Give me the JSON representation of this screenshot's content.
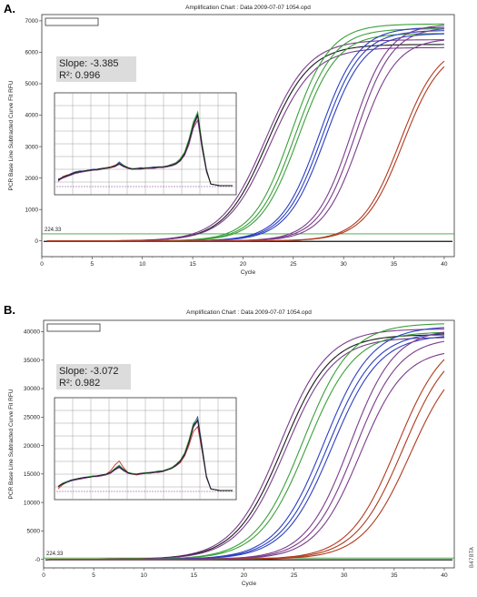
{
  "panels": [
    {
      "letter": "A.",
      "title": "Amplification Chart : Data 2009-07-07 1054.opd",
      "annotation": {
        "slope": "Slope: -3.385",
        "r2": "R²: 0.996"
      },
      "threshold_label": "224.33",
      "chart_data": {
        "type": "line",
        "title": "Amplification Chart : Data 2009-07-07 1054.opd",
        "xlabel": "Cycle",
        "ylabel": "PCR Base Line Subtracted Curve Fit RFU",
        "xlim": [
          0,
          41
        ],
        "ylim": [
          -500,
          7200
        ],
        "xticks": [
          0,
          5,
          10,
          15,
          20,
          25,
          30,
          35,
          40
        ],
        "yticks": [
          0,
          1000,
          2000,
          3000,
          4000,
          5000,
          6000,
          7000
        ],
        "threshold": 224.33,
        "threshold_color": "#3aa03a",
        "grid": false,
        "legend": "none",
        "series": [
          {
            "color": "#7a3c8c",
            "midpoint": 22.2,
            "plateau": 6400,
            "slope_k": 0.46
          },
          {
            "color": "#1a1a1a",
            "midpoint": 22.4,
            "plateau": 6250,
            "slope_k": 0.47
          },
          {
            "color": "#7a3c8c",
            "midpoint": 22.7,
            "plateau": 6150,
            "slope_k": 0.46
          },
          {
            "color": "#3aa03a",
            "midpoint": 24.8,
            "plateau": 6900,
            "slope_k": 0.52
          },
          {
            "color": "#3aa03a",
            "midpoint": 25.2,
            "plateau": 6750,
            "slope_k": 0.52
          },
          {
            "color": "#3aa03a",
            "midpoint": 25.5,
            "plateau": 6600,
            "slope_k": 0.52
          },
          {
            "color": "#2b3fc2",
            "midpoint": 27.6,
            "plateau": 6800,
            "slope_k": 0.52
          },
          {
            "color": "#2b3fc2",
            "midpoint": 27.9,
            "plateau": 6700,
            "slope_k": 0.52
          },
          {
            "color": "#2b3fc2",
            "midpoint": 28.2,
            "plateau": 6600,
            "slope_k": 0.52
          },
          {
            "color": "#7a3c8c",
            "midpoint": 30.8,
            "plateau": 6900,
            "slope_k": 0.55
          },
          {
            "color": "#7a3c8c",
            "midpoint": 31.2,
            "plateau": 6800,
            "slope_k": 0.55
          },
          {
            "color": "#7a3c8c",
            "midpoint": 31.6,
            "plateau": 6450,
            "slope_k": 0.55
          },
          {
            "color": "#b03a1e",
            "midpoint": 35.6,
            "plateau": 6300,
            "slope_k": 0.52
          },
          {
            "color": "#b03a1e",
            "midpoint": 35.9,
            "plateau": 6200,
            "slope_k": 0.52
          }
        ]
      },
      "inset_data": {
        "type": "line",
        "x": [
          0,
          1,
          2,
          3,
          4,
          5,
          6,
          7,
          8,
          9,
          10,
          11,
          12,
          13,
          14,
          15,
          16,
          17,
          18,
          19,
          20,
          21,
          22,
          23,
          24,
          25,
          26,
          27,
          28,
          29,
          30,
          31,
          32,
          33,
          34,
          35,
          36,
          37,
          38,
          39,
          40
        ],
        "series": [
          {
            "color": "#2b3fc2",
            "values": [
              0.08,
              0.1,
              0.12,
              0.15,
              0.17,
              0.18,
              0.18,
              0.19,
              0.2,
              0.2,
              0.21,
              0.22,
              0.23,
              0.24,
              0.29,
              0.25,
              0.22,
              0.2,
              0.21,
              0.22,
              0.21,
              0.22,
              0.23,
              0.22,
              0.23,
              0.24,
              0.26,
              0.28,
              0.32,
              0.4,
              0.55,
              0.75,
              0.88,
              0.5,
              0.2,
              0.02,
              0.01,
              0.0,
              0.0,
              0.0,
              0.0
            ]
          },
          {
            "color": "#c0392b",
            "values": [
              0.05,
              0.11,
              0.13,
              0.14,
              0.16,
              0.17,
              0.18,
              0.18,
              0.19,
              0.2,
              0.21,
              0.22,
              0.23,
              0.25,
              0.27,
              0.24,
              0.21,
              0.2,
              0.2,
              0.21,
              0.22,
              0.21,
              0.22,
              0.23,
              0.22,
              0.23,
              0.25,
              0.27,
              0.31,
              0.38,
              0.52,
              0.72,
              0.85,
              0.48,
              0.18,
              0.02,
              0.01,
              0.0,
              0.0,
              0.0,
              0.0
            ]
          },
          {
            "color": "#3aa03a",
            "values": [
              0.07,
              0.1,
              0.12,
              0.14,
              0.16,
              0.17,
              0.18,
              0.19,
              0.19,
              0.2,
              0.21,
              0.22,
              0.22,
              0.24,
              0.28,
              0.25,
              0.22,
              0.21,
              0.21,
              0.21,
              0.22,
              0.22,
              0.22,
              0.23,
              0.23,
              0.24,
              0.26,
              0.28,
              0.33,
              0.41,
              0.57,
              0.78,
              0.9,
              0.52,
              0.2,
              0.02,
              0.01,
              0.0,
              0.0,
              0.0,
              0.0
            ]
          },
          {
            "color": "#7a3c8c",
            "values": [
              0.06,
              0.09,
              0.11,
              0.13,
              0.15,
              0.16,
              0.17,
              0.18,
              0.19,
              0.19,
              0.2,
              0.21,
              0.22,
              0.23,
              0.26,
              0.23,
              0.21,
              0.2,
              0.2,
              0.2,
              0.21,
              0.21,
              0.21,
              0.22,
              0.22,
              0.23,
              0.24,
              0.26,
              0.3,
              0.37,
              0.5,
              0.7,
              0.8,
              0.45,
              0.17,
              0.02,
              0.01,
              0.0,
              0.0,
              0.0,
              0.0
            ]
          },
          {
            "color": "#1a1a1a",
            "values": [
              0.07,
              0.1,
              0.12,
              0.14,
              0.16,
              0.17,
              0.18,
              0.19,
              0.19,
              0.2,
              0.21,
              0.21,
              0.22,
              0.24,
              0.27,
              0.24,
              0.22,
              0.2,
              0.21,
              0.21,
              0.21,
              0.22,
              0.22,
              0.23,
              0.23,
              0.24,
              0.25,
              0.27,
              0.31,
              0.39,
              0.54,
              0.74,
              0.86,
              0.49,
              0.19,
              0.02,
              0.01,
              0.0,
              0.0,
              0.0,
              0.0
            ]
          }
        ]
      }
    },
    {
      "letter": "B.",
      "title": "Amplification Chart : Data 2009-07-07 1054.opd",
      "annotation": {
        "slope": "Slope: -3.072",
        "r2": "R²: 0.982"
      },
      "threshold_label": "224.33",
      "chart_data": {
        "type": "line",
        "title": "Amplification Chart : Data 2009-07-07 1054.opd",
        "xlabel": "Cycle",
        "ylabel": "PCR Base Line Subtracted Curve Fit RFU",
        "xlim": [
          0,
          41
        ],
        "ylim": [
          -1500,
          42000
        ],
        "xticks": [
          0,
          5,
          10,
          15,
          20,
          25,
          30,
          35,
          40
        ],
        "yticks": [
          0,
          5000,
          10000,
          15000,
          20000,
          25000,
          30000,
          35000,
          40000
        ],
        "threshold": 224.33,
        "threshold_color": "#3aa03a",
        "grid": false,
        "legend": "none",
        "series": [
          {
            "color": "#7a3c8c",
            "midpoint": 23.6,
            "plateau": 40500,
            "slope_k": 0.42
          },
          {
            "color": "#1a1a1a",
            "midpoint": 23.9,
            "plateau": 39500,
            "slope_k": 0.42
          },
          {
            "color": "#7a3c8c",
            "midpoint": 24.2,
            "plateau": 39000,
            "slope_k": 0.42
          },
          {
            "color": "#3aa03a",
            "midpoint": 25.9,
            "plateau": 41500,
            "slope_k": 0.42
          },
          {
            "color": "#3aa03a",
            "midpoint": 26.3,
            "plateau": 40000,
            "slope_k": 0.42
          },
          {
            "color": "#2b3fc2",
            "midpoint": 28.0,
            "plateau": 41000,
            "slope_k": 0.42
          },
          {
            "color": "#2b3fc2",
            "midpoint": 28.4,
            "plateau": 40000,
            "slope_k": 0.42
          },
          {
            "color": "#2b3fc2",
            "midpoint": 28.8,
            "plateau": 39500,
            "slope_k": 0.42
          },
          {
            "color": "#7a3c8c",
            "midpoint": 30.6,
            "plateau": 40500,
            "slope_k": 0.45
          },
          {
            "color": "#7a3c8c",
            "midpoint": 31.1,
            "plateau": 39000,
            "slope_k": 0.45
          },
          {
            "color": "#7a3c8c",
            "midpoint": 31.6,
            "plateau": 37000,
            "slope_k": 0.45
          },
          {
            "color": "#b03a1e",
            "midpoint": 35.3,
            "plateau": 40000,
            "slope_k": 0.42
          },
          {
            "color": "#b03a1e",
            "midpoint": 35.9,
            "plateau": 39000,
            "slope_k": 0.42
          },
          {
            "color": "#b03a1e",
            "midpoint": 36.6,
            "plateau": 37000,
            "slope_k": 0.42
          }
        ]
      },
      "inset_data": {
        "type": "line",
        "x": [
          0,
          1,
          2,
          3,
          4,
          5,
          6,
          7,
          8,
          9,
          10,
          11,
          12,
          13,
          14,
          15,
          16,
          17,
          18,
          19,
          20,
          21,
          22,
          23,
          24,
          25,
          26,
          27,
          28,
          29,
          30,
          31,
          32,
          33,
          34,
          35,
          36,
          37,
          38,
          39,
          40
        ],
        "series": [
          {
            "color": "#2b3fc2",
            "values": [
              0.05,
              0.09,
              0.11,
              0.13,
              0.14,
              0.15,
              0.16,
              0.17,
              0.17,
              0.18,
              0.19,
              0.2,
              0.22,
              0.26,
              0.3,
              0.26,
              0.22,
              0.2,
              0.2,
              0.21,
              0.21,
              0.22,
              0.23,
              0.23,
              0.24,
              0.26,
              0.28,
              0.31,
              0.36,
              0.45,
              0.6,
              0.8,
              0.9,
              0.55,
              0.18,
              0.02,
              0.01,
              0.0,
              0.0,
              0.0,
              0.0
            ]
          },
          {
            "color": "#c0392b",
            "values": [
              0.02,
              0.07,
              0.1,
              0.12,
              0.13,
              0.14,
              0.15,
              0.16,
              0.17,
              0.17,
              0.18,
              0.2,
              0.24,
              0.31,
              0.36,
              0.28,
              0.22,
              0.2,
              0.19,
              0.2,
              0.21,
              0.21,
              0.22,
              0.23,
              0.24,
              0.25,
              0.27,
              0.3,
              0.34,
              0.42,
              0.55,
              0.72,
              0.78,
              0.48,
              0.16,
              0.02,
              0.01,
              0.0,
              0.0,
              0.0,
              0.0
            ]
          },
          {
            "color": "#3aa03a",
            "values": [
              0.05,
              0.09,
              0.11,
              0.12,
              0.14,
              0.15,
              0.16,
              0.17,
              0.18,
              0.18,
              0.19,
              0.2,
              0.22,
              0.27,
              0.31,
              0.26,
              0.22,
              0.21,
              0.2,
              0.21,
              0.22,
              0.22,
              0.23,
              0.24,
              0.24,
              0.26,
              0.28,
              0.32,
              0.37,
              0.46,
              0.62,
              0.82,
              0.88,
              0.52,
              0.17,
              0.02,
              0.01,
              0.0,
              0.0,
              0.0,
              0.0
            ]
          },
          {
            "color": "#7a3c8c",
            "values": [
              0.04,
              0.08,
              0.1,
              0.12,
              0.13,
              0.14,
              0.15,
              0.16,
              0.17,
              0.17,
              0.18,
              0.19,
              0.21,
              0.25,
              0.28,
              0.24,
              0.21,
              0.2,
              0.2,
              0.2,
              0.21,
              0.21,
              0.22,
              0.22,
              0.23,
              0.25,
              0.27,
              0.3,
              0.35,
              0.43,
              0.58,
              0.77,
              0.85,
              0.5,
              0.16,
              0.02,
              0.01,
              0.0,
              0.0,
              0.0,
              0.0
            ]
          },
          {
            "color": "#1a1a1a",
            "values": [
              0.05,
              0.08,
              0.1,
              0.12,
              0.14,
              0.15,
              0.16,
              0.16,
              0.17,
              0.18,
              0.19,
              0.2,
              0.22,
              0.26,
              0.29,
              0.25,
              0.22,
              0.2,
              0.2,
              0.21,
              0.21,
              0.22,
              0.22,
              0.23,
              0.24,
              0.25,
              0.27,
              0.31,
              0.36,
              0.44,
              0.59,
              0.79,
              0.86,
              0.51,
              0.17,
              0.02,
              0.01,
              0.0,
              0.0,
              0.0,
              0.0
            ]
          }
        ]
      }
    }
  ],
  "side_id": "B47BTA",
  "chart_data": [
    {
      "type": "line",
      "title": "Amplification Chart : Data 2009-07-07 1054.opd",
      "xlabel": "Cycle",
      "ylabel": "PCR Base Line Subtracted Curve Fit RFU",
      "xlim": [
        0,
        41
      ],
      "ylim": [
        -500,
        7200
      ],
      "threshold": 224.33,
      "annotations": [
        "Slope: -3.385",
        "R²: 0.996"
      ]
    },
    {
      "type": "line",
      "title": "Amplification Chart : Data 2009-07-07 1054.opd",
      "xlabel": "Cycle",
      "ylabel": "PCR Base Line Subtracted Curve Fit RFU",
      "xlim": [
        0,
        41
      ],
      "ylim": [
        -1500,
        42000
      ],
      "threshold": 224.33,
      "annotations": [
        "Slope: -3.072",
        "R²: 0.982"
      ]
    }
  ]
}
